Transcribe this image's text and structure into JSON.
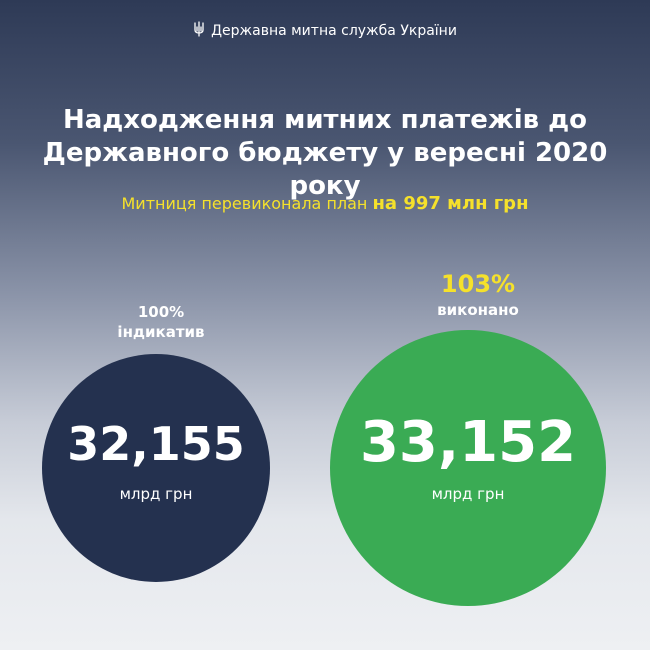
{
  "header": {
    "org_name": "Державна митна служба України",
    "emblem_icon": "trident-icon"
  },
  "title": {
    "line1": "Надходження митних платежів до",
    "line2": "Державного бюджету у вересні 2020 року"
  },
  "subtitle": {
    "text": "Митниця перевиконала план",
    "highlight": "на 997 млн грн"
  },
  "plan": {
    "percent": "100%",
    "label": "індикатив",
    "value": "32,155",
    "unit": "млрд грн"
  },
  "actual": {
    "percent": "103%",
    "label": "виконано",
    "value": "33,152",
    "unit": "млрд грн"
  },
  "colors": {
    "plan_circle": "#24314f",
    "actual_circle": "#3aab54",
    "highlight_text": "#f5e12b",
    "background_top": "#2e3a56",
    "background_bottom": "#eef0f3"
  }
}
